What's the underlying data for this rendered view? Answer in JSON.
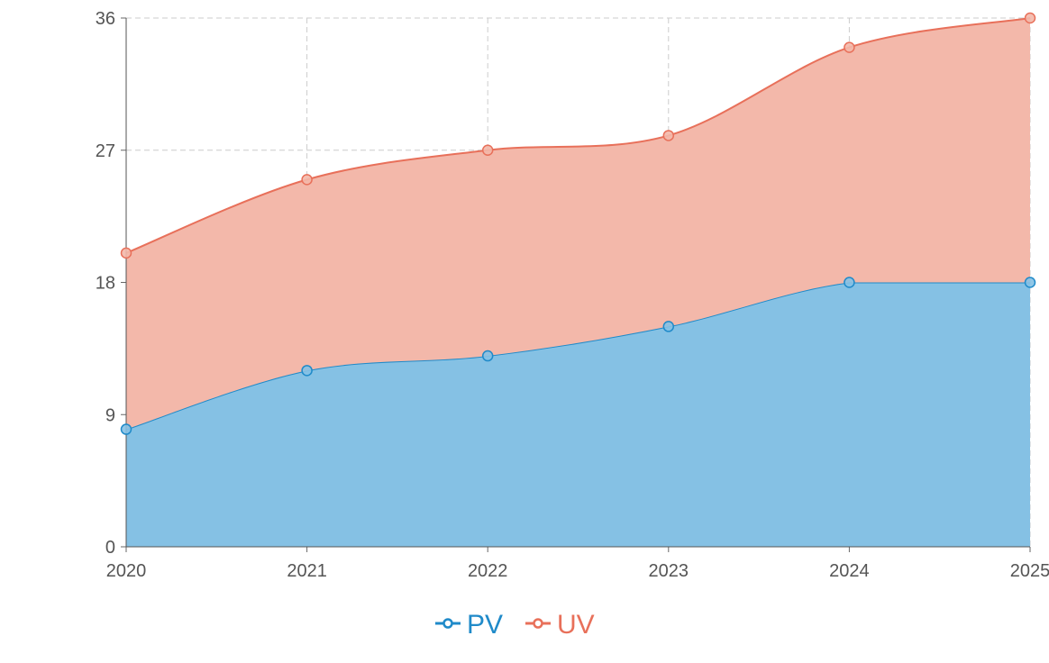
{
  "chart_data": {
    "type": "area",
    "stacked": true,
    "smooth": true,
    "title": "",
    "xlabel": "",
    "ylabel": "",
    "x": [
      "2020",
      "2021",
      "2022",
      "2023",
      "2024",
      "2025"
    ],
    "ylim": [
      0,
      36
    ],
    "yticks": [
      "0",
      "9",
      "18",
      "27",
      "36"
    ],
    "grid": true,
    "legend_placement": "bottom-center",
    "series": [
      {
        "name": "PV",
        "values": [
          8,
          12,
          13,
          15,
          18,
          18
        ],
        "color": "#1f8ac9",
        "fill": "#85c1e4"
      },
      {
        "name": "UV",
        "values": [
          12,
          13,
          14,
          13,
          16,
          18
        ],
        "color": "#e8705a",
        "fill": "#f3b8aa"
      }
    ]
  }
}
